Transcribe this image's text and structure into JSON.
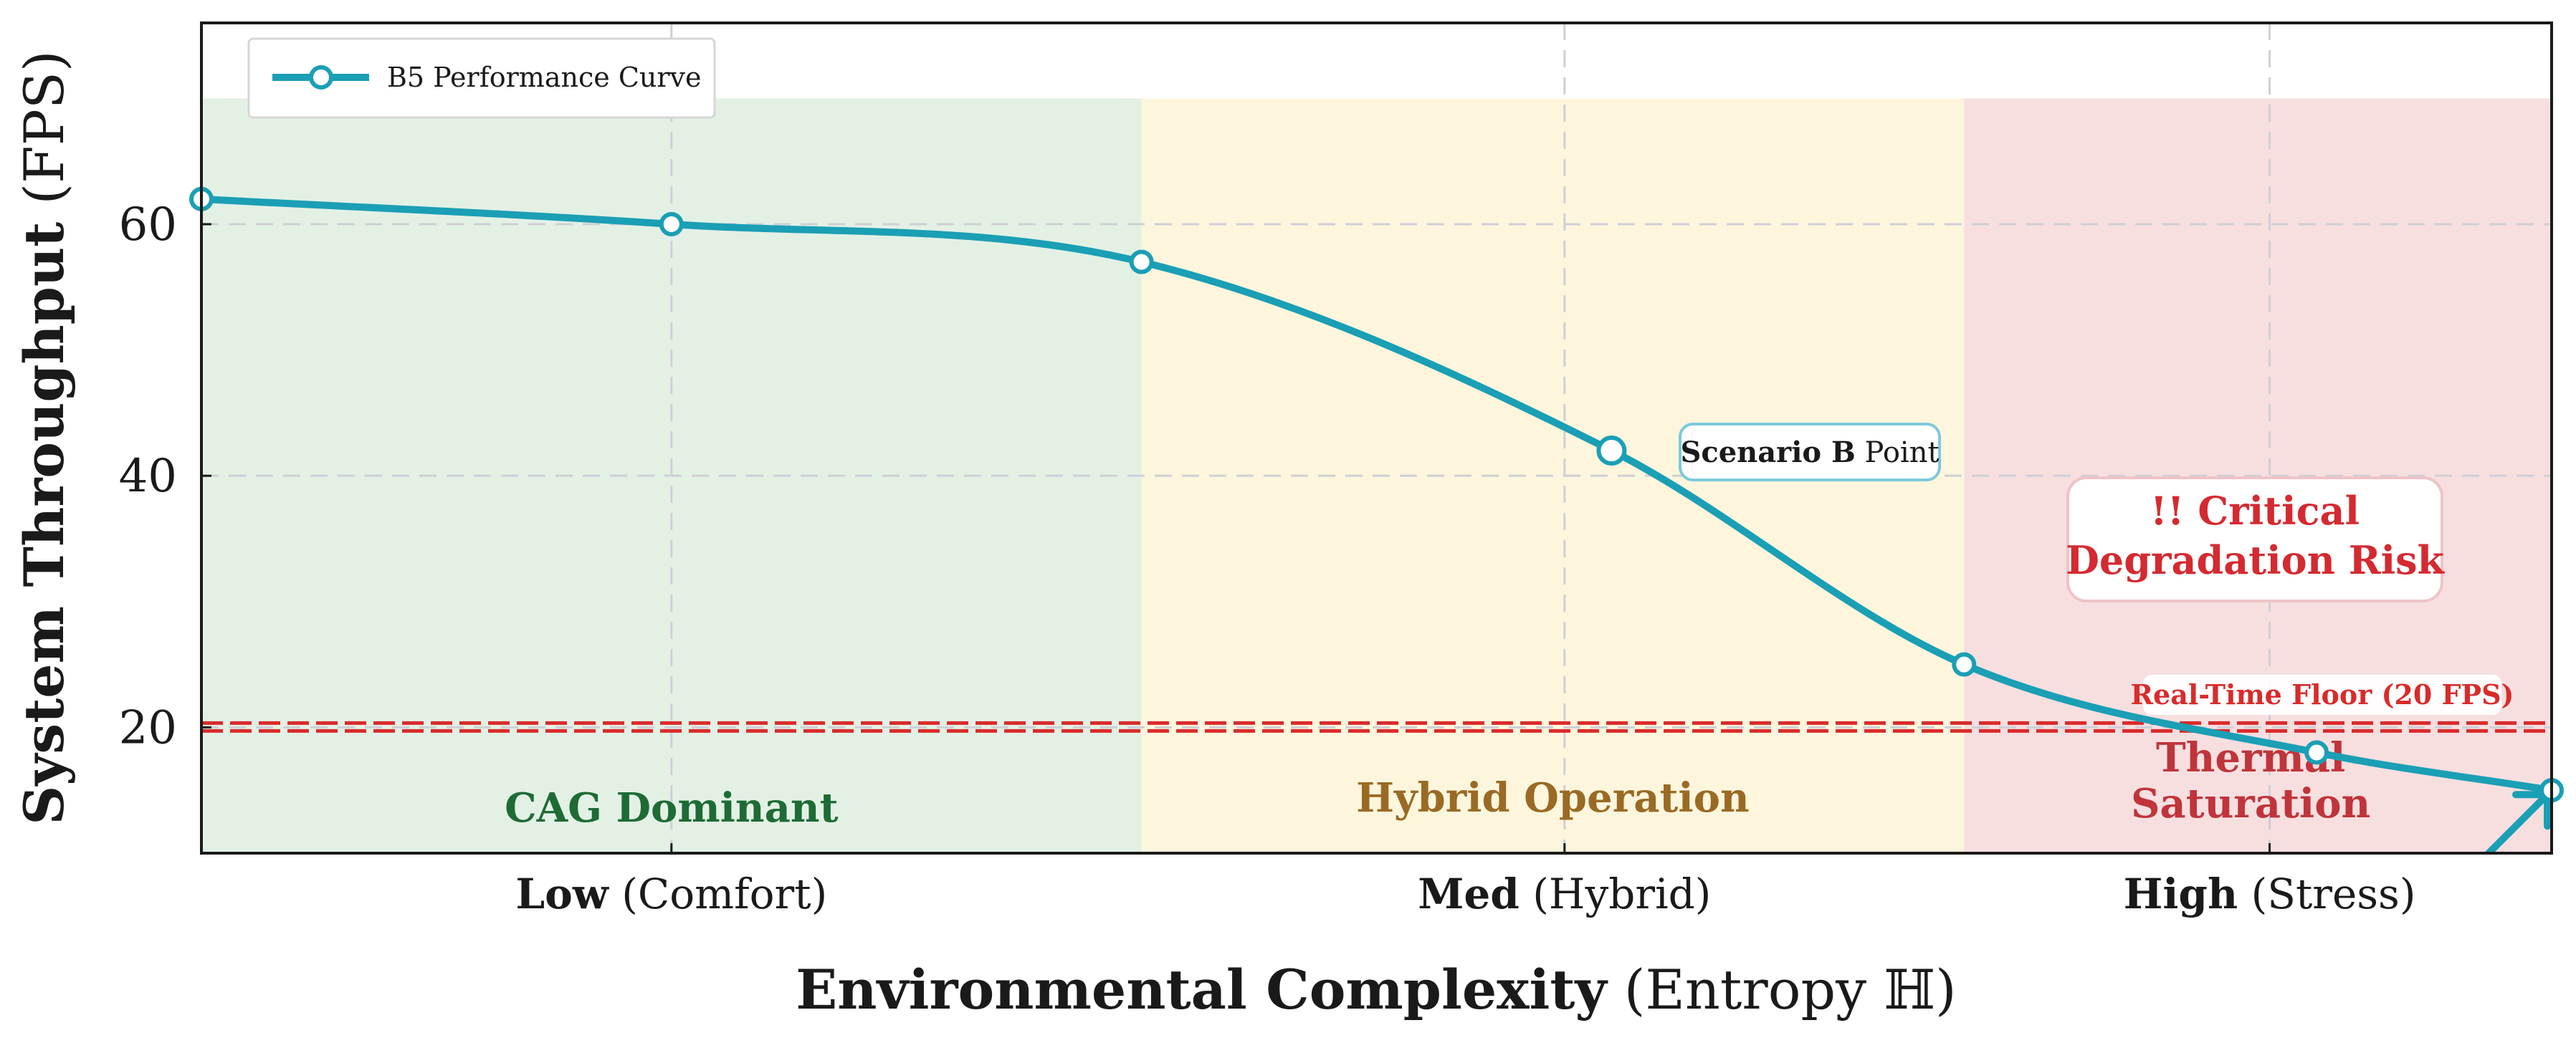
{
  "chart_data": {
    "type": "line",
    "title": "",
    "xlabel": {
      "bold": "Environmental Complexity",
      "rest": " (Entropy ℍ)"
    },
    "ylabel": {
      "bold": "System Throughput",
      "rest": " (FPS)"
    },
    "xlim": [
      0,
      10
    ],
    "ylim": [
      10,
      76
    ],
    "yticks": [
      20,
      40,
      60
    ],
    "xticks": [
      {
        "x": 2,
        "bold": "Low",
        "rest": " (Comfort)"
      },
      {
        "x": 5.8,
        "bold": "Med",
        "rest": " (Hybrid)"
      },
      {
        "x": 8.8,
        "bold": "High",
        "rest": " (Stress)"
      }
    ],
    "grid": true,
    "legend": {
      "position": "top-left",
      "entries": [
        "B5 Performance Curve"
      ]
    },
    "series": [
      {
        "name": "B5 Performance Curve",
        "color": "#1a9fb5",
        "x": [
          0,
          2,
          4,
          6,
          7.5,
          9,
          10
        ],
        "y": [
          62,
          60,
          57,
          42,
          25,
          18,
          15
        ]
      }
    ],
    "regions": [
      {
        "x0": 0,
        "x1": 4,
        "ymax": 70,
        "label": "CAG Dominant",
        "color": "#e3f1e5",
        "label_color": "#1e6b35"
      },
      {
        "x0": 4,
        "x1": 7.5,
        "ymax": 70,
        "label": "Hybrid Operation",
        "color": "#fdf6dd",
        "label_color": "#9a6a24"
      },
      {
        "x0": 7.5,
        "x1": 10,
        "ymax": 70,
        "label": "Thermal Saturation",
        "color": "#f7dfe0",
        "label_color": "#c0343b"
      }
    ],
    "threshold": {
      "y": 20,
      "label": "Real-Time Floor (20 FPS)",
      "color": "#d92b2b"
    },
    "annotations": {
      "scenario": {
        "bold": "Scenario B",
        "rest": " Point",
        "x": 6,
        "y": 42
      },
      "critical": {
        "line1": "!! Critical",
        "line2": "Degradation Risk"
      }
    }
  }
}
